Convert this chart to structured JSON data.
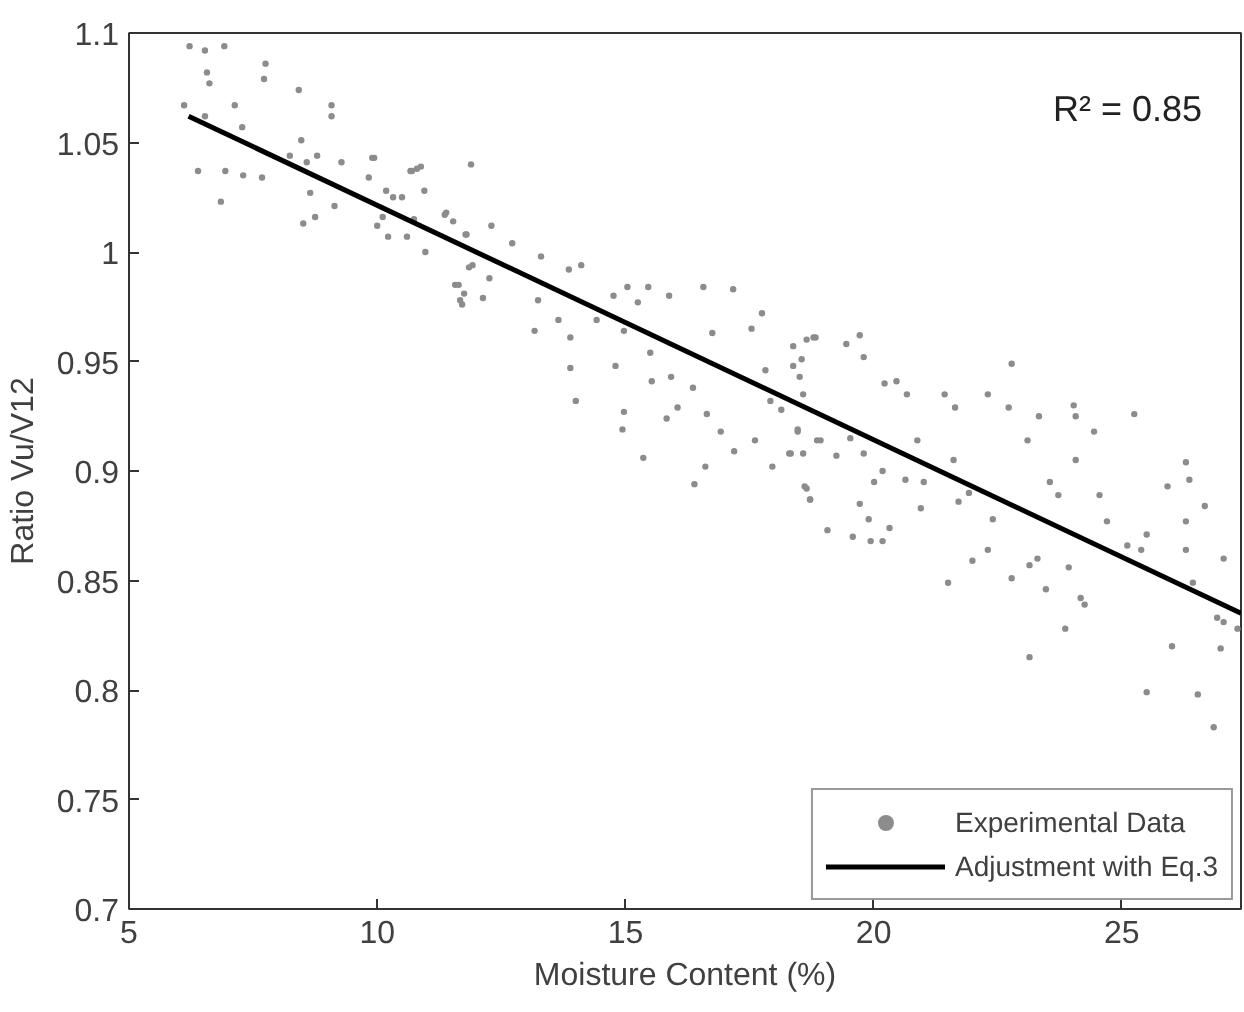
{
  "chart_data": {
    "type": "scatter",
    "xlabel": "Moisture Content (%)",
    "ylabel": "Ratio Vu/V12",
    "annotations": [
      "R² = 0.85"
    ],
    "xlim": [
      5,
      27.4
    ],
    "xticks": [
      5,
      10,
      15,
      20,
      25
    ],
    "ylim": [
      0.7,
      1.1
    ],
    "yticks": [
      0.7,
      0.75,
      0.8,
      0.85,
      0.9,
      0.95,
      1,
      1.05,
      1.1
    ],
    "grid": false,
    "legend": "bottom right",
    "series": [
      {
        "name": "Experimental Data",
        "marker": "circle",
        "color": "#8c8c8c",
        "x": [
          6.11,
          6.22,
          6.39,
          6.53,
          6.57,
          6.62,
          6.53,
          6.85,
          6.92,
          6.94,
          7.13,
          7.28,
          7.3,
          7.68,
          7.72,
          7.75,
          8.24,
          8.42,
          8.47,
          8.51,
          8.58,
          8.65,
          8.75,
          8.79,
          9.08,
          9.08,
          9.14,
          9.28,
          9.83,
          9.9,
          9.94,
          10.0,
          10.11,
          10.22,
          10.32,
          10.5,
          10.6,
          10.67,
          10.74,
          10.8,
          10.95,
          10.97,
          11.39,
          11.53,
          11.57,
          11.67,
          11.75,
          11.8,
          11.85,
          11.89,
          10.18,
          10.7,
          10.88,
          11.36,
          11.78,
          12.3,
          11.64,
          11.71,
          12.13,
          11.92,
          12.26,
          12.72,
          13.17,
          13.3,
          13.24,
          13.65,
          13.86,
          14.11,
          13.89,
          13.89,
          14.0,
          14.42,
          14.76,
          14.8,
          14.97,
          14.97,
          14.94,
          15.04,
          15.25,
          15.36,
          15.46,
          15.5,
          15.53,
          15.88,
          15.92,
          15.83,
          16.05,
          16.39,
          16.61,
          16.57,
          16.36,
          16.64,
          16.75,
          16.92,
          17.17,
          17.19,
          17.54,
          17.61,
          17.75,
          17.82,
          17.92,
          17.96,
          18.14,
          18.3,
          18.38,
          18.47,
          18.58,
          18.61,
          18.72,
          18.55,
          18.79,
          18.86,
          18.65,
          18.83,
          18.38,
          18.51,
          19.45,
          19.72,
          19.8,
          18.33,
          18.58,
          18.47,
          18.93,
          18.65,
          18.72,
          19.07,
          19.25,
          19.53,
          19.58,
          19.72,
          19.8,
          19.9,
          19.94,
          20.18,
          20.01,
          20.22,
          20.46,
          20.32,
          20.18,
          20.64,
          20.67,
          20.88,
          20.95,
          21.01,
          21.43,
          21.5,
          21.61,
          21.64,
          21.71,
          21.92,
          21.99,
          22.3,
          22.3,
          22.4,
          22.72,
          22.78,
          22.78,
          23.1,
          23.14,
          23.14,
          23.3,
          23.33,
          23.47,
          23.55,
          23.72,
          23.86,
          23.93,
          24.03,
          24.07,
          24.07,
          24.17,
          24.25,
          24.44,
          24.55,
          24.7,
          25.11,
          25.25,
          25.39,
          25.5,
          25.5,
          25.92,
          26.01,
          26.29,
          26.36,
          26.29,
          26.29,
          26.43,
          26.53,
          26.67,
          26.85,
          26.92,
          27.05,
          26.99,
          27.05,
          27.33
        ],
        "values": [
          1.067,
          1.094,
          1.037,
          1.092,
          1.082,
          1.077,
          1.062,
          1.023,
          1.094,
          1.037,
          1.067,
          1.057,
          1.035,
          1.034,
          1.079,
          1.086,
          1.044,
          1.074,
          1.051,
          1.013,
          1.041,
          1.027,
          1.016,
          1.044,
          1.067,
          1.062,
          1.021,
          1.041,
          1.034,
          1.043,
          1.043,
          1.012,
          1.016,
          1.007,
          1.025,
          1.025,
          1.007,
          1.037,
          1.015,
          1.038,
          1.028,
          1.0,
          1.018,
          1.014,
          0.985,
          0.978,
          0.981,
          1.008,
          0.993,
          1.04,
          1.028,
          1.037,
          1.039,
          1.017,
          1.008,
          1.012,
          0.985,
          0.976,
          0.979,
          0.994,
          0.988,
          1.004,
          0.964,
          0.998,
          0.978,
          0.969,
          0.992,
          0.994,
          0.961,
          0.947,
          0.932,
          0.969,
          0.98,
          0.948,
          0.964,
          0.927,
          0.919,
          0.984,
          0.977,
          0.906,
          0.984,
          0.954,
          0.941,
          0.98,
          0.943,
          0.924,
          0.929,
          0.894,
          0.902,
          0.984,
          0.938,
          0.926,
          0.963,
          0.918,
          0.983,
          0.909,
          0.965,
          0.914,
          0.972,
          0.946,
          0.932,
          0.902,
          0.928,
          0.908,
          0.957,
          0.919,
          0.935,
          0.893,
          0.887,
          0.951,
          0.961,
          0.914,
          0.96,
          0.961,
          0.948,
          0.943,
          0.958,
          0.962,
          0.952,
          0.908,
          0.908,
          0.918,
          0.914,
          0.892,
          0.887,
          0.873,
          0.907,
          0.915,
          0.87,
          0.885,
          0.908,
          0.878,
          0.868,
          0.868,
          0.895,
          0.94,
          0.941,
          0.874,
          0.9,
          0.896,
          0.935,
          0.914,
          0.883,
          0.895,
          0.935,
          0.849,
          0.905,
          0.929,
          0.886,
          0.89,
          0.859,
          0.935,
          0.864,
          0.878,
          0.929,
          0.949,
          0.851,
          0.914,
          0.815,
          0.857,
          0.86,
          0.925,
          0.846,
          0.895,
          0.889,
          0.828,
          0.856,
          0.93,
          0.925,
          0.905,
          0.842,
          0.839,
          0.918,
          0.889,
          0.877,
          0.866,
          0.926,
          0.864,
          0.871,
          0.799,
          0.893,
          0.82,
          0.904,
          0.896,
          0.877,
          0.864,
          0.849,
          0.798,
          0.884,
          0.783,
          0.833,
          0.831,
          0.819,
          0.86,
          0.828
        ]
      },
      {
        "name": "Adjustment with Eq.3",
        "type": "line",
        "marker": "none",
        "line_style": "solid",
        "color": "#000000",
        "x": [
          6.2,
          27.4
        ],
        "values": [
          1.062,
          0.835
        ]
      }
    ]
  }
}
